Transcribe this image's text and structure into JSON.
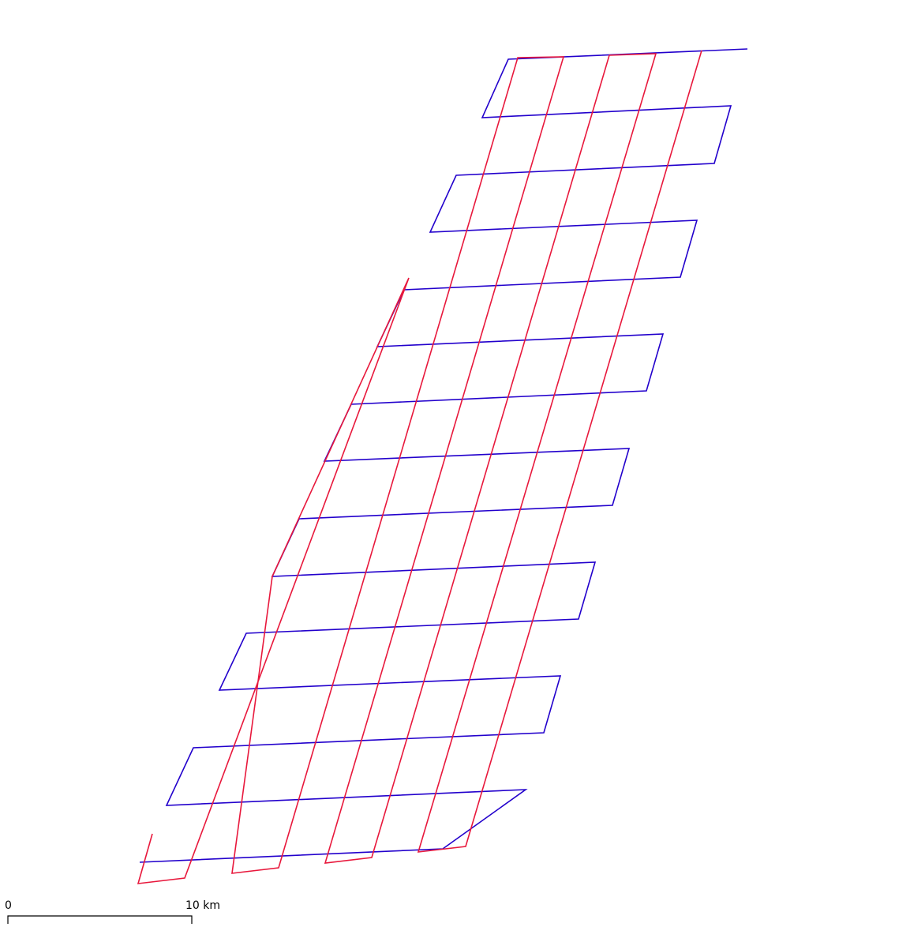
{
  "map": {
    "description_type": "survey flight lines",
    "colors": {
      "cross_lines": "#2200cc",
      "main_lines": "#e8183c",
      "scale_bar": "#000000",
      "background": "#ffffff"
    }
  },
  "scale_bar": {
    "start_label": "0",
    "end_label": "10 km"
  }
}
